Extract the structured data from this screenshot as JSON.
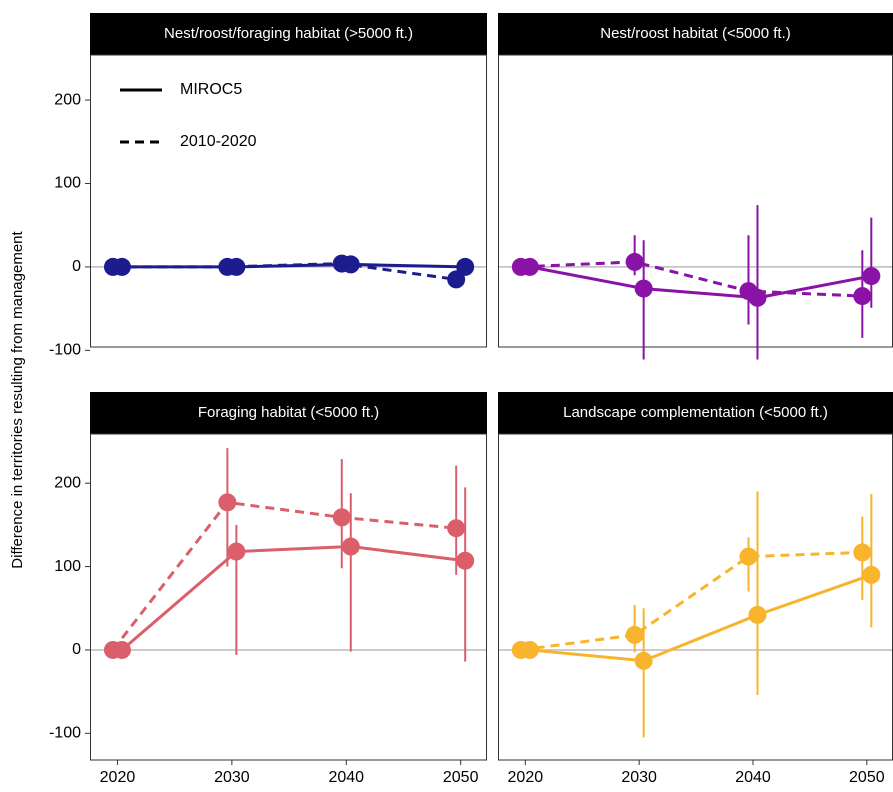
{
  "y_label": "Difference in territories resulting from management",
  "chart_data": [
    {
      "type": "line",
      "title": "Nest/roost/foraging habitat (>5000 ft.)",
      "color": "#1c1c8f",
      "legend": "top-left",
      "x": [
        2020,
        2030,
        2040,
        2050
      ],
      "xlim": [
        2017.6,
        2052.3
      ],
      "xticks": [
        2020,
        2030,
        2040,
        2050
      ],
      "ylim": [
        -96,
        254
      ],
      "yticks": [
        -100,
        0,
        100,
        200
      ],
      "hline": 0,
      "series": [
        {
          "name": "MIROC5",
          "dashed": false,
          "values": [
            0,
            0,
            3,
            0
          ]
        },
        {
          "name": "2010-2020",
          "dashed": true,
          "values": [
            0,
            0,
            4,
            -15
          ]
        }
      ]
    },
    {
      "type": "line",
      "title": "Nest/roost habitat (<5000 ft.)",
      "color": "#8a12a6",
      "x": [
        2020,
        2030,
        2040,
        2050
      ],
      "xlim": [
        2017.6,
        2052.3
      ],
      "xticks": [
        2020,
        2030,
        2040,
        2050
      ],
      "ylim": [
        -96,
        254
      ],
      "yticks": [
        -100,
        0,
        100,
        200
      ],
      "hline": 0,
      "series": [
        {
          "name": "MIROC5",
          "dashed": false,
          "values": [
            0,
            -26,
            -37,
            -11
          ],
          "lower": [
            0,
            -111,
            -111,
            -49
          ],
          "upper": [
            0,
            32,
            74,
            59
          ]
        },
        {
          "name": "2010-2020",
          "dashed": true,
          "values": [
            0,
            6,
            -29,
            -35
          ],
          "lower": [
            0,
            -10,
            -69,
            -85
          ],
          "upper": [
            0,
            38,
            38,
            20
          ]
        }
      ]
    },
    {
      "type": "line",
      "title": "Foraging habitat (<5000 ft.)",
      "color": "#db5f6a",
      "x": [
        2020,
        2030,
        2040,
        2050
      ],
      "xlim": [
        2017.6,
        2052.3
      ],
      "xticks": [
        2020,
        2030,
        2040,
        2050
      ],
      "ylim": [
        -132,
        259
      ],
      "yticks": [
        -100,
        0,
        100,
        200
      ],
      "hline": 0,
      "series": [
        {
          "name": "MIROC5",
          "dashed": false,
          "values": [
            0,
            118,
            124,
            107
          ],
          "lower": [
            0,
            -6,
            -2,
            -14
          ],
          "upper": [
            0,
            150,
            188,
            195
          ]
        },
        {
          "name": "2010-2020",
          "dashed": true,
          "values": [
            0,
            177,
            159,
            146
          ],
          "lower": [
            0,
            100,
            98,
            90
          ],
          "upper": [
            0,
            242,
            229,
            221
          ]
        }
      ]
    },
    {
      "type": "line",
      "title": "Landscape complementation (<5000 ft.)",
      "color": "#f7b42c",
      "x": [
        2020,
        2030,
        2040,
        2050
      ],
      "xlim": [
        2017.6,
        2052.3
      ],
      "xticks": [
        2020,
        2030,
        2040,
        2050
      ],
      "ylim": [
        -132,
        259
      ],
      "yticks": [
        -100,
        0,
        100,
        200
      ],
      "hline": 0,
      "series": [
        {
          "name": "MIROC5",
          "dashed": false,
          "values": [
            0,
            -13,
            42,
            90
          ],
          "lower": [
            0,
            -105,
            -54,
            27
          ],
          "upper": [
            0,
            50,
            190,
            187
          ]
        },
        {
          "name": "2010-2020",
          "dashed": true,
          "values": [
            0,
            18,
            112,
            117
          ],
          "lower": [
            0,
            -3,
            70,
            60
          ],
          "upper": [
            0,
            54,
            135,
            160
          ]
        }
      ]
    }
  ]
}
